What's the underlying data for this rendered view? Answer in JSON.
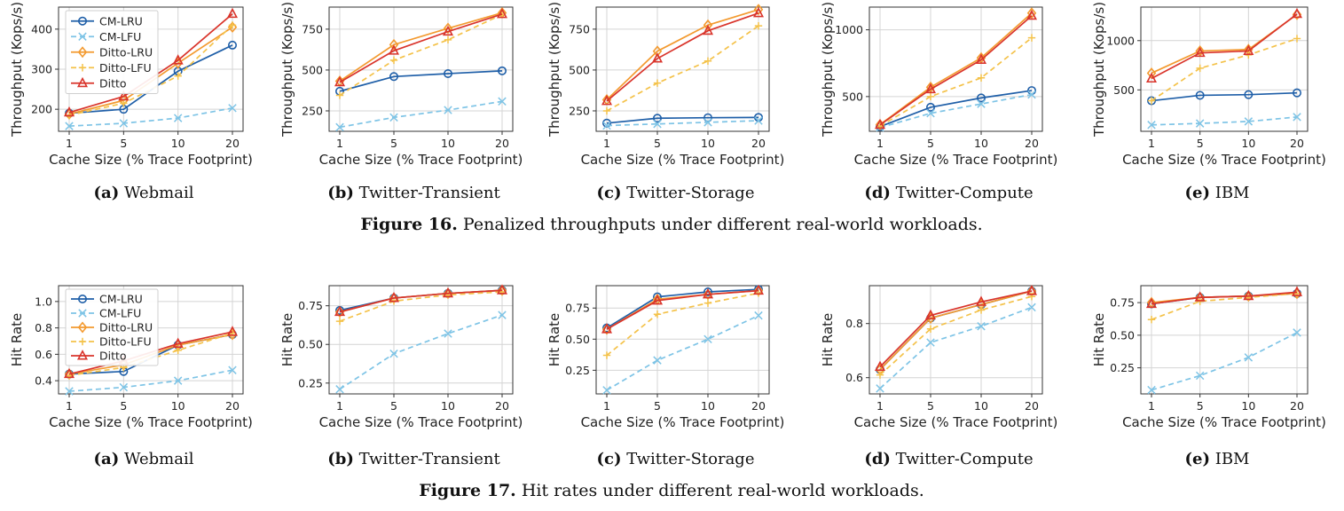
{
  "series_styles": [
    {
      "name": "CM-LRU",
      "color": "#1f5fa8",
      "dash": "",
      "marker": "circle"
    },
    {
      "name": "CM-LFU",
      "color": "#7ec4e6",
      "dash": "6,4",
      "marker": "x"
    },
    {
      "name": "Ditto-LRU",
      "color": "#f39a2f",
      "dash": "",
      "marker": "diamond"
    },
    {
      "name": "Ditto-LFU",
      "color": "#f4c24a",
      "dash": "6,4",
      "marker": "plus"
    },
    {
      "name": "Ditto",
      "color": "#d9342b",
      "dash": "",
      "marker": "triangle"
    }
  ],
  "figures": [
    {
      "caption_label": "Figure 16.",
      "caption_text": " Penalized throughputs under different real-world workloads."
    },
    {
      "caption_label": "Figure 17.",
      "caption_text": " Hit rates under different real-world workloads."
    }
  ],
  "chart_data": [
    {
      "type": "line",
      "subcaption_label": "(a)",
      "subcaption_text": " Webmail",
      "xlabel": "Cache Size (% Trace Footprint)",
      "ylabel": "Throughput (Kops/s)",
      "categories": [
        "1",
        "5",
        "10",
        "20"
      ],
      "ylim": [
        145,
        455
      ],
      "yticks": [
        200,
        300,
        400
      ],
      "grid": true,
      "legend": "upper-left",
      "series": [
        {
          "name": "CM-LRU",
          "values": [
            190,
            200,
            295,
            360
          ]
        },
        {
          "name": "CM-LFU",
          "values": [
            158,
            165,
            178,
            203
          ]
        },
        {
          "name": "Ditto-LRU",
          "values": [
            188,
            222,
            315,
            405
          ]
        },
        {
          "name": "Ditto-LFU",
          "values": [
            185,
            215,
            283,
            410
          ]
        },
        {
          "name": "Ditto",
          "values": [
            192,
            232,
            322,
            438
          ]
        }
      ]
    },
    {
      "type": "line",
      "subcaption_label": "(b)",
      "subcaption_text": " Twitter-Transient",
      "xlabel": "Cache Size (% Trace Footprint)",
      "ylabel": "Throughput (Kops/s)",
      "categories": [
        "1",
        "5",
        "10",
        "20"
      ],
      "ylim": [
        125,
        885
      ],
      "yticks": [
        250,
        500,
        750
      ],
      "grid": true,
      "legend": "none",
      "series": [
        {
          "name": "CM-LRU",
          "values": [
            370,
            460,
            478,
            495
          ]
        },
        {
          "name": "CM-LFU",
          "values": [
            150,
            210,
            255,
            308
          ]
        },
        {
          "name": "Ditto-LRU",
          "values": [
            432,
            655,
            755,
            850
          ]
        },
        {
          "name": "Ditto-LFU",
          "values": [
            345,
            560,
            685,
            840
          ]
        },
        {
          "name": "Ditto",
          "values": [
            425,
            618,
            735,
            842
          ]
        }
      ]
    },
    {
      "type": "line",
      "subcaption_label": "(c)",
      "subcaption_text": " Twitter-Storage",
      "xlabel": "Cache Size (% Trace Footprint)",
      "ylabel": "Throughput (Kops/s)",
      "categories": [
        "1",
        "5",
        "10",
        "20"
      ],
      "ylim": [
        125,
        885
      ],
      "yticks": [
        250,
        500,
        750
      ],
      "grid": true,
      "legend": "none",
      "series": [
        {
          "name": "CM-LRU",
          "values": [
            175,
            205,
            208,
            210
          ]
        },
        {
          "name": "CM-LFU",
          "values": [
            160,
            170,
            180,
            190
          ]
        },
        {
          "name": "Ditto-LRU",
          "values": [
            318,
            615,
            775,
            870
          ]
        },
        {
          "name": "Ditto-LFU",
          "values": [
            250,
            420,
            555,
            770
          ]
        },
        {
          "name": "Ditto",
          "values": [
            310,
            570,
            740,
            848
          ]
        }
      ]
    },
    {
      "type": "line",
      "subcaption_label": "(d)",
      "subcaption_text": " Twitter-Compute",
      "xlabel": "Cache Size (% Trace Footprint)",
      "ylabel": "Throughput (Kops/s)",
      "categories": [
        "1",
        "5",
        "10",
        "20"
      ],
      "ylim": [
        240,
        1170
      ],
      "yticks": [
        500,
        1000
      ],
      "grid": true,
      "legend": "none",
      "series": [
        {
          "name": "CM-LRU",
          "values": [
            275,
            420,
            490,
            545
          ]
        },
        {
          "name": "CM-LFU",
          "values": [
            268,
            375,
            445,
            515
          ]
        },
        {
          "name": "Ditto-LRU",
          "values": [
            290,
            570,
            790,
            1125
          ]
        },
        {
          "name": "Ditto-LFU",
          "values": [
            280,
            500,
            640,
            940
          ]
        },
        {
          "name": "Ditto",
          "values": [
            288,
            555,
            775,
            1105
          ]
        }
      ]
    },
    {
      "type": "line",
      "subcaption_label": "(e)",
      "subcaption_text": " IBM",
      "xlabel": "Cache Size (% Trace Footprint)",
      "ylabel": "Throughput (Kops/s)",
      "categories": [
        "1",
        "5",
        "10",
        "20"
      ],
      "ylim": [
        80,
        1340
      ],
      "yticks": [
        500,
        1000
      ],
      "grid": true,
      "legend": "none",
      "series": [
        {
          "name": "CM-LRU",
          "values": [
            390,
            445,
            452,
            470
          ]
        },
        {
          "name": "CM-LFU",
          "values": [
            145,
            160,
            180,
            225
          ]
        },
        {
          "name": "Ditto-LRU",
          "values": [
            670,
            895,
            910,
            1265
          ]
        },
        {
          "name": "Ditto-LFU",
          "values": [
            390,
            720,
            855,
            1020
          ]
        },
        {
          "name": "Ditto",
          "values": [
            615,
            875,
            895,
            1270
          ]
        }
      ]
    },
    {
      "type": "line",
      "subcaption_label": "(a)",
      "subcaption_text": " Webmail",
      "xlabel": "Cache Size (% Trace Footprint)",
      "ylabel": "Hit Rate",
      "categories": [
        "1",
        "5",
        "10",
        "20"
      ],
      "ylim": [
        0.3,
        1.12
      ],
      "yticks": [
        "0.4",
        "0.6",
        "0.8",
        "1.0"
      ],
      "grid": true,
      "legend": "upper-left",
      "series": [
        {
          "name": "CM-LRU",
          "values": [
            0.45,
            0.47,
            0.67,
            0.75
          ]
        },
        {
          "name": "CM-LFU",
          "values": [
            0.32,
            0.35,
            0.4,
            0.48
          ]
        },
        {
          "name": "Ditto-LRU",
          "values": [
            0.45,
            0.52,
            0.67,
            0.75
          ]
        },
        {
          "name": "Ditto-LFU",
          "values": [
            0.44,
            0.5,
            0.63,
            0.76
          ]
        },
        {
          "name": "Ditto",
          "values": [
            0.45,
            0.55,
            0.68,
            0.77
          ]
        }
      ]
    },
    {
      "type": "line",
      "subcaption_label": "(b)",
      "subcaption_text": " Twitter-Transient",
      "xlabel": "Cache Size (% Trace Footprint)",
      "ylabel": "Hit Rate",
      "categories": [
        "1",
        "5",
        "10",
        "20"
      ],
      "ylim": [
        0.18,
        0.88
      ],
      "yticks": [
        "0.25",
        "0.50",
        "0.75"
      ],
      "grid": true,
      "legend": "none",
      "series": [
        {
          "name": "CM-LRU",
          "values": [
            0.72,
            0.8,
            0.83,
            0.85
          ]
        },
        {
          "name": "CM-LFU",
          "values": [
            0.21,
            0.44,
            0.57,
            0.69
          ]
        },
        {
          "name": "Ditto-LRU",
          "values": [
            0.71,
            0.8,
            0.83,
            0.85
          ]
        },
        {
          "name": "Ditto-LFU",
          "values": [
            0.65,
            0.78,
            0.82,
            0.84
          ]
        },
        {
          "name": "Ditto",
          "values": [
            0.71,
            0.8,
            0.83,
            0.85
          ]
        }
      ]
    },
    {
      "type": "line",
      "subcaption_label": "(c)",
      "subcaption_text": " Twitter-Storage",
      "xlabel": "Cache Size (% Trace Footprint)",
      "ylabel": "Hit Rate",
      "categories": [
        "1",
        "5",
        "10",
        "20"
      ],
      "ylim": [
        0.06,
        0.93
      ],
      "yticks": [
        "0.25",
        "0.50",
        "0.75"
      ],
      "grid": true,
      "legend": "none",
      "series": [
        {
          "name": "CM-LRU",
          "values": [
            0.59,
            0.84,
            0.88,
            0.9
          ]
        },
        {
          "name": "CM-LFU",
          "values": [
            0.09,
            0.33,
            0.5,
            0.69
          ]
        },
        {
          "name": "Ditto-LRU",
          "values": [
            0.58,
            0.82,
            0.86,
            0.89
          ]
        },
        {
          "name": "Ditto-LFU",
          "values": [
            0.37,
            0.7,
            0.79,
            0.87
          ]
        },
        {
          "name": "Ditto",
          "values": [
            0.58,
            0.81,
            0.86,
            0.89
          ]
        }
      ]
    },
    {
      "type": "line",
      "subcaption_label": "(d)",
      "subcaption_text": " Twitter-Compute",
      "xlabel": "Cache Size (% Trace Footprint)",
      "ylabel": "Hit Rate",
      "categories": [
        "1",
        "5",
        "10",
        "20"
      ],
      "ylim": [
        0.54,
        0.94
      ],
      "yticks": [
        "0.6",
        "0.8"
      ],
      "grid": true,
      "legend": "none",
      "series": [
        {
          "name": "CM-LRU",
          "values": [
            0.63,
            0.82,
            0.87,
            0.92
          ]
        },
        {
          "name": "CM-LFU",
          "values": [
            0.56,
            0.73,
            0.79,
            0.86
          ]
        },
        {
          "name": "Ditto-LRU",
          "values": [
            0.63,
            0.82,
            0.87,
            0.92
          ]
        },
        {
          "name": "Ditto-LFU",
          "values": [
            0.61,
            0.78,
            0.85,
            0.9
          ]
        },
        {
          "name": "Ditto",
          "values": [
            0.64,
            0.83,
            0.88,
            0.92
          ]
        }
      ]
    },
    {
      "type": "line",
      "subcaption_label": "(e)",
      "subcaption_text": " IBM",
      "xlabel": "Cache Size (% Trace Footprint)",
      "ylabel": "Hit Rate",
      "categories": [
        "1",
        "5",
        "10",
        "20"
      ],
      "ylim": [
        0.05,
        0.88
      ],
      "yticks": [
        "0.25",
        "0.50",
        "0.75"
      ],
      "grid": true,
      "legend": "none",
      "series": [
        {
          "name": "CM-LRU",
          "values": [
            0.74,
            0.79,
            0.8,
            0.82
          ]
        },
        {
          "name": "CM-LFU",
          "values": [
            0.08,
            0.19,
            0.33,
            0.52
          ]
        },
        {
          "name": "Ditto-LRU",
          "values": [
            0.75,
            0.79,
            0.8,
            0.82
          ]
        },
        {
          "name": "Ditto-LFU",
          "values": [
            0.62,
            0.76,
            0.79,
            0.82
          ]
        },
        {
          "name": "Ditto",
          "values": [
            0.74,
            0.79,
            0.8,
            0.83
          ]
        }
      ]
    }
  ]
}
